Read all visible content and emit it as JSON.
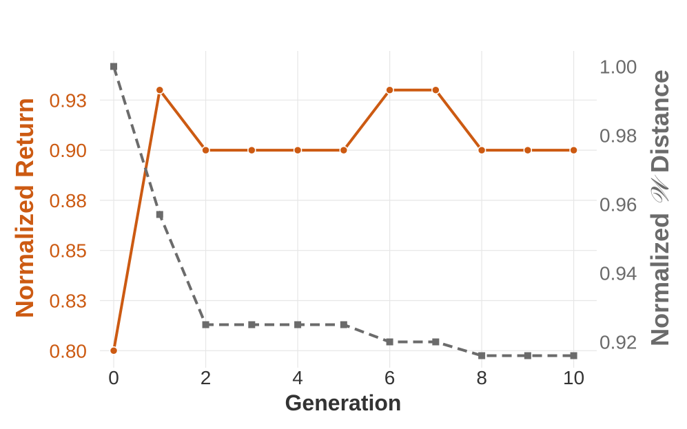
{
  "chart_data": {
    "type": "line",
    "xlabel": "Generation",
    "ylabel_left": "Normalized Return",
    "ylabel_right_parts": [
      "Normalized ",
      "𝒲",
      " Distance"
    ],
    "x": [
      0,
      1,
      2,
      3,
      4,
      5,
      6,
      7,
      8,
      9,
      10
    ],
    "x_ticks": [
      0,
      2,
      4,
      6,
      8,
      10
    ],
    "x_range": [
      -0.3,
      10.5
    ],
    "y_left_range": [
      0.7915,
      0.9495
    ],
    "y_left_ticks": [
      0.8,
      0.825,
      0.85,
      0.875,
      0.9,
      0.925
    ],
    "y_left_tick_labels": [
      "0.80",
      "0.83",
      "0.85",
      "0.88",
      "0.90",
      "0.93"
    ],
    "y_right_range": [
      0.9125,
      1.0045
    ],
    "y_right_ticks": [
      0.92,
      0.94,
      0.96,
      0.98,
      1.0
    ],
    "y_right_tick_labels": [
      "0.92",
      "0.94",
      "0.96",
      "0.98",
      "1.00"
    ],
    "grid": true,
    "series": [
      {
        "axis": "left",
        "color": "#cc5a12",
        "style": "solid",
        "marker": "circle",
        "values": [
          0.8,
          0.93,
          0.9,
          0.9,
          0.9,
          0.9,
          0.93,
          0.93,
          0.9,
          0.9,
          0.9
        ]
      },
      {
        "axis": "right",
        "color": "#6b6b6b",
        "style": "dashed",
        "marker": "square",
        "values": [
          1.0,
          0.957,
          0.925,
          0.925,
          0.925,
          0.925,
          0.92,
          0.92,
          0.916,
          0.916,
          0.916
        ]
      }
    ]
  }
}
